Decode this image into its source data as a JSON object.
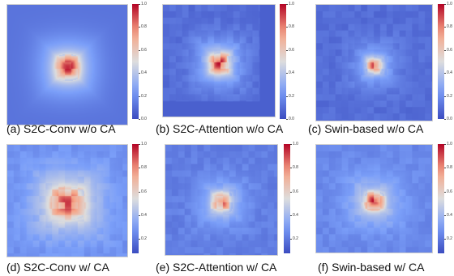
{
  "chart_data": [
    {
      "type": "heatmap",
      "caption": "(a) S2C-Conv w/o CA",
      "colorbar": {
        "min": 0.0,
        "max": 1.0,
        "ticks": [
          "0.0",
          "0.2",
          "0.4",
          "0.6",
          "0.8",
          "1.0"
        ]
      },
      "pattern": {
        "center_value": 0.95,
        "core_size": 0.22,
        "halo_value": 0.42,
        "halo_size": 0.55,
        "background": 0.12,
        "grid_artifact": false,
        "edge_band": false
      }
    },
    {
      "type": "heatmap",
      "caption": "(b) S2C-Attention w/o CA",
      "colorbar": {
        "min": 0.0,
        "max": 1.0,
        "ticks": [
          "0.0",
          "0.2",
          "0.4",
          "0.6",
          "0.8",
          "1.0"
        ]
      },
      "pattern": {
        "center_value": 0.9,
        "core_size": 0.2,
        "halo_value": 0.38,
        "halo_size": 0.5,
        "background": 0.1,
        "grid_artifact": true,
        "edge_band": true
      }
    },
    {
      "type": "heatmap",
      "caption": "(c) Swin-based w/o CA",
      "colorbar": {
        "min": 0.0,
        "max": 1.0,
        "ticks": [
          "0.0",
          "0.2",
          "0.4",
          "0.6",
          "0.8",
          "1.0"
        ]
      },
      "pattern": {
        "center_value": 0.85,
        "core_size": 0.16,
        "halo_value": 0.3,
        "halo_size": 0.45,
        "background": 0.1,
        "grid_artifact": true,
        "edge_band": false
      }
    },
    {
      "type": "heatmap",
      "caption": "(d) S2C-Conv w/ CA",
      "colorbar": {
        "min": 0.0,
        "max": 1.0,
        "ticks": [
          "0.2",
          "0.4",
          "0.6",
          "0.8",
          "1.0"
        ]
      },
      "pattern": {
        "center_value": 0.85,
        "core_size": 0.3,
        "halo_value": 0.5,
        "halo_size": 0.7,
        "background": 0.2,
        "grid_artifact": true,
        "edge_band": false
      }
    },
    {
      "type": "heatmap",
      "caption": "(e) S2C-Attention w/ CA",
      "colorbar": {
        "min": 0.0,
        "max": 1.0,
        "ticks": [
          "0.2",
          "0.4",
          "0.6",
          "0.8",
          "1.0"
        ]
      },
      "pattern": {
        "center_value": 0.78,
        "core_size": 0.2,
        "halo_value": 0.35,
        "halo_size": 0.5,
        "background": 0.15,
        "grid_artifact": true,
        "edge_band": false
      }
    },
    {
      "type": "heatmap",
      "caption": "(f) Swin-based w/ CA",
      "colorbar": {
        "min": 0.0,
        "max": 1.0,
        "ticks": [
          "0.2",
          "0.4",
          "0.6",
          "0.8",
          "1.0"
        ]
      },
      "pattern": {
        "center_value": 0.92,
        "core_size": 0.18,
        "halo_value": 0.4,
        "halo_size": 0.55,
        "background": 0.18,
        "grid_artifact": true,
        "edge_band": false
      }
    }
  ],
  "colormap": {
    "name": "coolwarm",
    "low": "#3b4cc0",
    "mid": "#dddddd",
    "high": "#b40426"
  }
}
